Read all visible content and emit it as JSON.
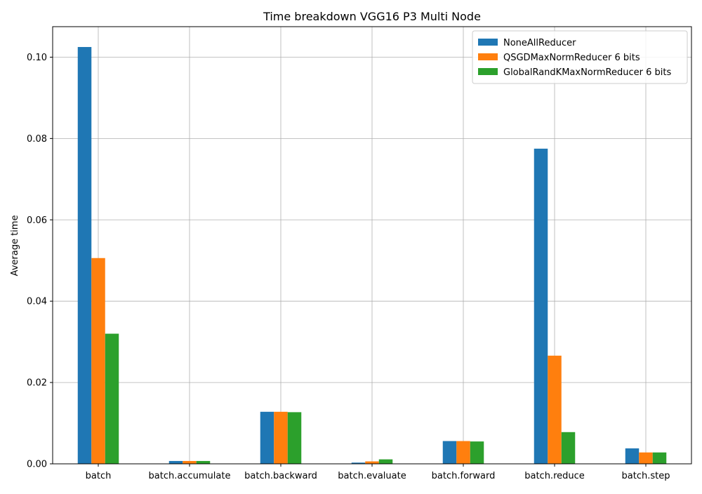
{
  "chart_data": {
    "type": "bar",
    "title": "Time breakdown VGG16 P3 Multi Node",
    "xlabel": "",
    "ylabel": "Average time",
    "categories": [
      "batch",
      "batch.accumulate",
      "batch.backward",
      "batch.evaluate",
      "batch.forward",
      "batch.reduce",
      "batch.step"
    ],
    "series": [
      {
        "name": "NoneAllReducer",
        "color": "#1f77b4",
        "values": [
          0.1025,
          0.0007,
          0.0128,
          0.0003,
          0.0056,
          0.0775,
          0.0038
        ]
      },
      {
        "name": "QSGDMaxNormReducer 6 bits",
        "color": "#ff7f0e",
        "values": [
          0.0506,
          0.0007,
          0.0128,
          0.0006,
          0.0056,
          0.0266,
          0.0028
        ]
      },
      {
        "name": "GlobalRandKMaxNormReducer 6 bits",
        "color": "#2ca02c",
        "values": [
          0.032,
          0.0007,
          0.0127,
          0.0011,
          0.0055,
          0.0078,
          0.0028
        ]
      }
    ],
    "yticks": [
      "0.00",
      "0.02",
      "0.04",
      "0.06",
      "0.08",
      "0.10"
    ],
    "ylim": [
      0,
      0.1075
    ],
    "grid": true,
    "legend": "top-right"
  }
}
